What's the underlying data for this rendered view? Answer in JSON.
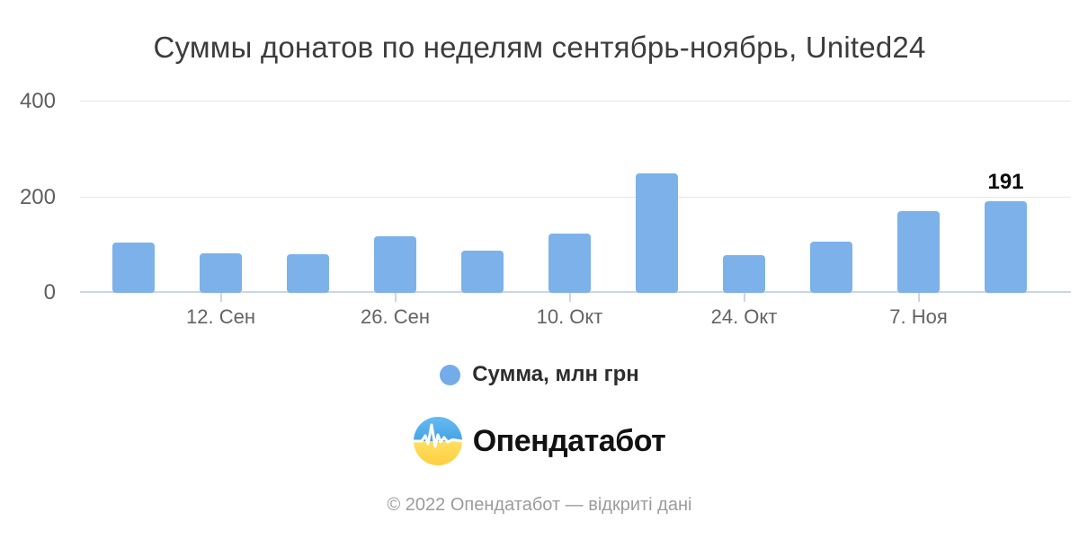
{
  "title": "Суммы донатов по неделям сентябрь-ноябрь, United24",
  "chart_data": {
    "type": "bar",
    "categories": [
      "",
      "12. Сен",
      "",
      "26. Сен",
      "",
      "10. Окт",
      "",
      "24. Окт",
      "",
      "7. Ноя",
      ""
    ],
    "series": [
      {
        "name": "Сумма, млн грн",
        "values": [
          105,
          82,
          80,
          118,
          88,
          124,
          250,
          78,
          107,
          170,
          191
        ]
      }
    ],
    "x_tick_labels": [
      "12. Сен",
      "26. Сен",
      "10. Окт",
      "24. Окт",
      "7. Ноя"
    ],
    "x_tick_slots": [
      1,
      3,
      5,
      7,
      9
    ],
    "y_ticks": [
      0,
      200,
      400
    ],
    "ylim": [
      0,
      400
    ],
    "grid": "horizontal",
    "legend_position": "bottom",
    "bar_color": "#7cb2e9",
    "grid_color": "#e6e6e6",
    "axis_line_color": "#ccd4eb",
    "data_labels": [
      {
        "index": 10,
        "text": "191"
      }
    ]
  },
  "legend": {
    "label": "Сумма, млн грн",
    "marker_color": "#74abe9"
  },
  "branding": {
    "name": "Опендатабот",
    "flag_blue": "#55aeea",
    "flag_yellow": "#ffd94e",
    "pulse_color": "#ffffff"
  },
  "footer": {
    "text": "© 2022 Опендатабот — відкриті дані"
  }
}
